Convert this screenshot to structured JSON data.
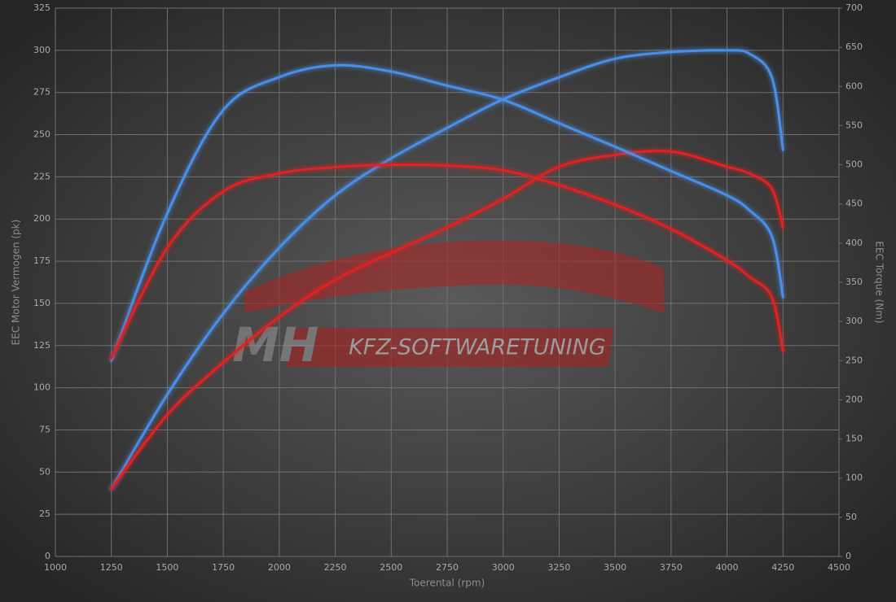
{
  "chart_data": {
    "type": "line",
    "xlabel": "Toerental (rpm)",
    "ylabel": "EEC Motor Vermogen (pk)",
    "y2label": "EEC Torque (Nm)",
    "watermark": [
      "MH",
      "KFZ-SOFTWARETUNING"
    ],
    "grid": true,
    "xlim": [
      1000,
      4500
    ],
    "xticks": [
      1000,
      1250,
      1500,
      1750,
      2000,
      2250,
      2500,
      2750,
      3000,
      3250,
      3500,
      3750,
      4000,
      4250,
      4500
    ],
    "ylim": [
      0,
      325
    ],
    "yticks": [
      0,
      25,
      50,
      75,
      100,
      125,
      150,
      175,
      200,
      225,
      250,
      275,
      300,
      325
    ],
    "y2lim": [
      0,
      700
    ],
    "y2ticks": [
      0,
      50,
      100,
      150,
      200,
      250,
      300,
      350,
      400,
      450,
      500,
      550,
      600,
      650,
      700
    ],
    "x": [
      1250,
      1500,
      1750,
      2000,
      2250,
      2500,
      2750,
      3000,
      3250,
      3500,
      3750,
      4000,
      4100,
      4200,
      4250
    ],
    "series": [
      {
        "color": "#4a8fe8",
        "values": [
          40,
          96,
          144,
          183,
          214,
          236,
          254,
          271,
          284,
          295,
          299,
          300,
          298,
          284,
          241
        ]
      },
      {
        "color": "#e02020",
        "values": [
          40,
          84,
          115,
          142,
          164,
          180,
          195,
          212,
          231,
          238,
          240,
          231,
          227,
          218,
          195
        ]
      },
      {
        "color": "#4a8fe8",
        "axis": "y2",
        "values": [
          250,
          438,
          570,
          612,
          627,
          619,
          601,
          583,
          553,
          523,
          492,
          461,
          442,
          409,
          331
        ]
      },
      {
        "color": "#e02020",
        "axis": "y2",
        "values": [
          253,
          394,
          466,
          489,
          497,
          500,
          499,
          493,
          474,
          449,
          418,
          378,
          357,
          331,
          262
        ]
      }
    ]
  }
}
